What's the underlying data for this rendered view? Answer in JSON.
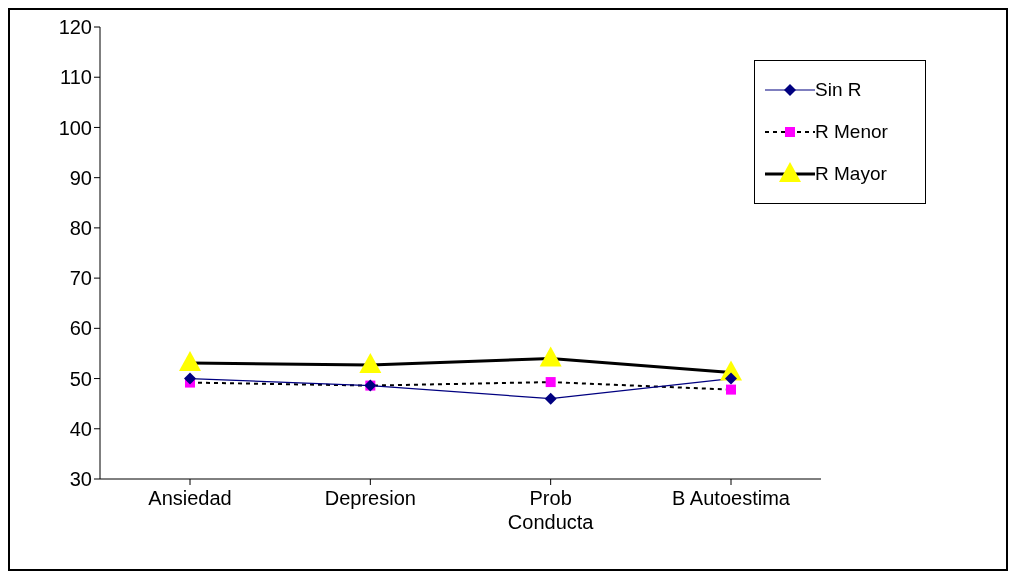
{
  "chart_data": {
    "type": "line",
    "categories": [
      "Ansiedad",
      "Depresion",
      "Prob Conducta",
      "B Autoestima"
    ],
    "series": [
      {
        "name": "Sin R",
        "color": "#000080",
        "values": [
          50,
          48.6,
          46,
          50
        ],
        "marker": "diamond",
        "line_style": "solid"
      },
      {
        "name": "R Menor",
        "color": "#ff00ff",
        "values": [
          49.2,
          48.6,
          49.3,
          47.8
        ],
        "marker": "square",
        "line_style": "dashed"
      },
      {
        "name": "R Mayor",
        "color": "#ffff00",
        "values": [
          53.1,
          52.7,
          54,
          51.2
        ],
        "marker": "triangle",
        "line_style": "solid"
      }
    ],
    "ylim": [
      30,
      120
    ],
    "yticks": [
      30,
      40,
      50,
      60,
      70,
      80,
      90,
      100,
      110,
      120
    ],
    "grid": false,
    "legend": "top right"
  }
}
